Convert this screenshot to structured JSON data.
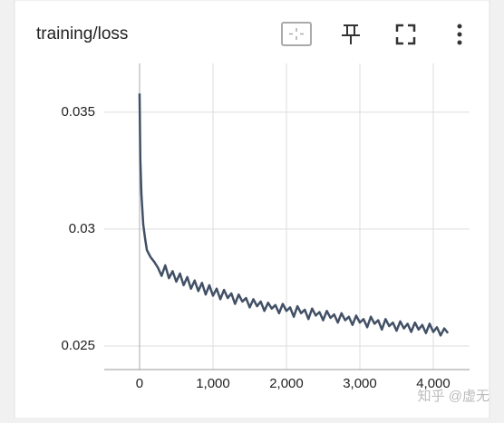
{
  "chart_data": {
    "type": "line",
    "title": "training/loss",
    "color": "#425066",
    "x": [
      0,
      10,
      25,
      50,
      75,
      100,
      150,
      200,
      250,
      300,
      350,
      400,
      450,
      500,
      550,
      600,
      650,
      700,
      750,
      800,
      850,
      900,
      950,
      1000,
      1050,
      1100,
      1150,
      1200,
      1250,
      1300,
      1350,
      1400,
      1450,
      1500,
      1550,
      1600,
      1650,
      1700,
      1750,
      1800,
      1850,
      1900,
      1950,
      2000,
      2050,
      2100,
      2150,
      2200,
      2250,
      2300,
      2350,
      2400,
      2450,
      2500,
      2550,
      2600,
      2650,
      2700,
      2750,
      2800,
      2850,
      2900,
      2950,
      3000,
      3050,
      3100,
      3150,
      3200,
      3250,
      3300,
      3350,
      3400,
      3450,
      3500,
      3550,
      3600,
      3650,
      3700,
      3750,
      3800,
      3850,
      3900,
      3950,
      4000,
      4050,
      4100,
      4150,
      4200
    ],
    "values": [
      0.0358,
      0.033,
      0.0315,
      0.0302,
      0.0296,
      0.0291,
      0.0288,
      0.0286,
      0.02835,
      0.028,
      0.02845,
      0.0279,
      0.0282,
      0.02775,
      0.0281,
      0.0276,
      0.02795,
      0.02745,
      0.0278,
      0.02735,
      0.0277,
      0.0272,
      0.0276,
      0.02715,
      0.02745,
      0.027,
      0.0274,
      0.02705,
      0.02725,
      0.0268,
      0.0272,
      0.0269,
      0.02705,
      0.02665,
      0.027,
      0.0267,
      0.0269,
      0.0265,
      0.02685,
      0.0266,
      0.02675,
      0.0264,
      0.0268,
      0.0265,
      0.02665,
      0.02625,
      0.0267,
      0.0264,
      0.02655,
      0.02615,
      0.0266,
      0.0263,
      0.02645,
      0.0261,
      0.0265,
      0.0262,
      0.02635,
      0.026,
      0.0264,
      0.0261,
      0.02625,
      0.0259,
      0.0263,
      0.026,
      0.02615,
      0.0258,
      0.02625,
      0.02595,
      0.0261,
      0.0257,
      0.02615,
      0.02585,
      0.026,
      0.02565,
      0.02605,
      0.02575,
      0.02595,
      0.0256,
      0.026,
      0.0257,
      0.0259,
      0.02555,
      0.02595,
      0.0256,
      0.0258,
      0.02545,
      0.02575,
      0.02555
    ],
    "xlim": [
      -481,
      4494
    ],
    "ylim": [
      0.02399,
      0.03709
    ],
    "xticks": [
      0,
      {
        "value": 1000,
        "label": "1,000"
      },
      {
        "value": 2000,
        "label": "2,000"
      },
      {
        "value": 3000,
        "label": "3,000"
      },
      {
        "value": 4000,
        "label": "4,000"
      }
    ],
    "yticks": [
      0.025,
      0.03,
      0.035
    ],
    "grid": true
  },
  "watermark": "知乎 @虚无"
}
